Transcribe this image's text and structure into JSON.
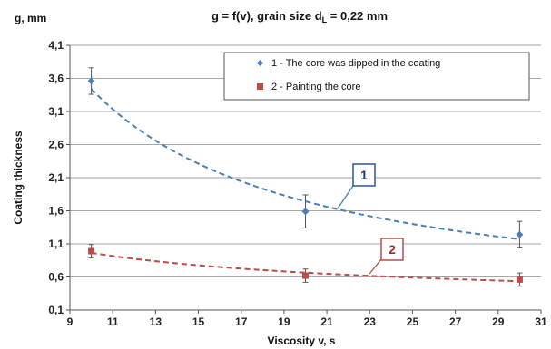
{
  "chart_data": {
    "type": "scatter",
    "title": {
      "main": "g = f(v), grain size d",
      "sub": "L",
      "tail": " = 0,22 mm"
    },
    "ylabel_top": "g, mm",
    "ylabel": "Coating thickness",
    "xlabel": "Viscosity  v, s",
    "xlim": [
      9,
      31
    ],
    "ylim": [
      0.1,
      4.1
    ],
    "xticks": [
      "9",
      "11",
      "13",
      "15",
      "17",
      "19",
      "21",
      "23",
      "25",
      "27",
      "29",
      "31"
    ],
    "yticks": [
      "0,1",
      "0,6",
      "1,1",
      "1,6",
      "2,1",
      "2,6",
      "3,1",
      "3,6",
      "4,1"
    ],
    "grid": "horizontal",
    "legend_position": "top-right",
    "series": [
      {
        "name": "1 - The core was dipped in the coating",
        "callout": "1",
        "marker": "diamond",
        "color": "#4a7ebb",
        "points": [
          {
            "x": 10,
            "y": 3.56,
            "err": 0.2
          },
          {
            "x": 20,
            "y": 1.59,
            "err": 0.25
          },
          {
            "x": 30,
            "y": 1.24,
            "err": 0.2
          }
        ],
        "trend": "power"
      },
      {
        "name": "2 - Painting the core",
        "callout": "2",
        "marker": "square",
        "color": "#be4b48",
        "points": [
          {
            "x": 10,
            "y": 0.99,
            "err": 0.1
          },
          {
            "x": 20,
            "y": 0.62,
            "err": 0.1
          },
          {
            "x": 30,
            "y": 0.56,
            "err": 0.1
          }
        ],
        "trend": "power"
      }
    ]
  }
}
